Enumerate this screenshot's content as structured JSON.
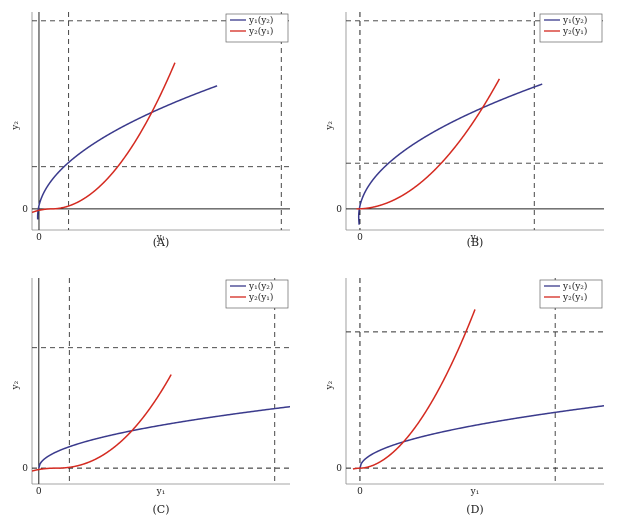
{
  "chart_data": [
    {
      "caption": "(A)",
      "type": "line",
      "xlabel": "y₁",
      "ylabel": "y₂",
      "xticks": [
        "0"
      ],
      "yticks": [
        "0"
      ],
      "vaxis": true,
      "haxis": true,
      "vaxis_dashed": false,
      "haxis_dashed": false,
      "vlines": [
        0.85,
        6.95
      ],
      "hlines": [
        1.2,
        5.35
      ],
      "legend": [
        "y₁(y₂)",
        "y₂(y₁)"
      ],
      "legend_position": "top-right",
      "series": [
        {
          "name": "y₁(y₂)",
          "color": "#3a3a8c",
          "type": "y1_of_y2",
          "a": 0.05,
          "b": 0.6,
          "d": 0.22,
          "y2": [
            -0.3,
            3.5
          ]
        },
        {
          "name": "y₂(y₁)",
          "color": "#d42a20",
          "type": "y2_of_y1",
          "y0": 0.35,
          "k": 0.33,
          "p": 2,
          "y1": [
            -0.2,
            3.9
          ]
        }
      ],
      "xlim": [
        -0.2,
        7.2
      ],
      "ylim": [
        -0.6,
        5.6
      ]
    },
    {
      "caption": "(B)",
      "type": "line",
      "xlabel": "y₁",
      "ylabel": "y₂",
      "xticks": [
        "0"
      ],
      "yticks": [
        "0"
      ],
      "vaxis": false,
      "haxis": true,
      "vaxis_dashed": true,
      "haxis_dashed": false,
      "vlines": [
        5.0
      ],
      "hlines": [
        1.3,
        5.35
      ],
      "legend": [
        "y₁(y₂)",
        "y₂(y₁)"
      ],
      "legend_position": "top-right",
      "series": [
        {
          "name": "y₁(y₂)",
          "color": "#3a3a8c",
          "type": "y1_of_y2",
          "a": 0.05,
          "b": 0.6,
          "d": 0.28,
          "y2": [
            -0.45,
            3.55
          ]
        },
        {
          "name": "y₂(y₁)",
          "color": "#d42a20",
          "type": "y2_of_y1",
          "y0": -0.1,
          "k": 0.22,
          "p": 2,
          "y1": [
            -0.1,
            4.0
          ]
        }
      ],
      "xlim": [
        -0.4,
        7.0
      ],
      "ylim": [
        -0.6,
        5.6
      ]
    },
    {
      "caption": "(C)",
      "type": "line",
      "xlabel": "y₁",
      "ylabel": "y₂",
      "xticks": [
        "0"
      ],
      "yticks": [
        "0"
      ],
      "vaxis": true,
      "haxis": false,
      "vaxis_dashed": false,
      "haxis_dashed": true,
      "vlines": [
        0.9,
        6.95
      ],
      "hlines": [
        3.8
      ],
      "legend": [
        "y₁(y₂)",
        "y₂(y₁)"
      ],
      "legend_position": "top-right",
      "series": [
        {
          "name": "y₁(y₂)",
          "color": "#3a3a8c",
          "type": "sqrt",
          "x0": 0.0,
          "c": 0.46,
          "y1": [
            0.0,
            7.4
          ]
        },
        {
          "name": "y₂(y₁)",
          "color": "#d42a20",
          "type": "y2_of_y1",
          "y0": 0.5,
          "k": 0.2,
          "p": 2.2,
          "y1": [
            -0.2,
            3.9
          ]
        }
      ],
      "xlim": [
        -0.2,
        7.4
      ],
      "ylim": [
        -0.5,
        6.0
      ]
    },
    {
      "caption": "(D)",
      "type": "line",
      "xlabel": "y₁",
      "ylabel": "y₂",
      "xticks": [
        "0"
      ],
      "yticks": [
        "0"
      ],
      "vaxis": false,
      "haxis": false,
      "vaxis_dashed": true,
      "haxis_dashed": true,
      "vlines": [
        5.6
      ],
      "hlines": [
        4.3
      ],
      "legend": [
        "y₁(y₂)",
        "y₂(y₁)"
      ],
      "legend_position": "top-right",
      "series": [
        {
          "name": "y₁(y₂)",
          "color": "#3a3a8c",
          "type": "sqrt",
          "x0": 0.0,
          "c": 0.48,
          "y1": [
            0.0,
            7.0
          ]
        },
        {
          "name": "y₂(y₁)",
          "color": "#d42a20",
          "type": "y2_of_y1",
          "y0": 0.0,
          "k": 0.55,
          "p": 1.85,
          "y1": [
            -0.2,
            3.3
          ]
        }
      ],
      "xlim": [
        -0.4,
        7.0
      ],
      "ylim": [
        -0.5,
        6.0
      ]
    }
  ]
}
